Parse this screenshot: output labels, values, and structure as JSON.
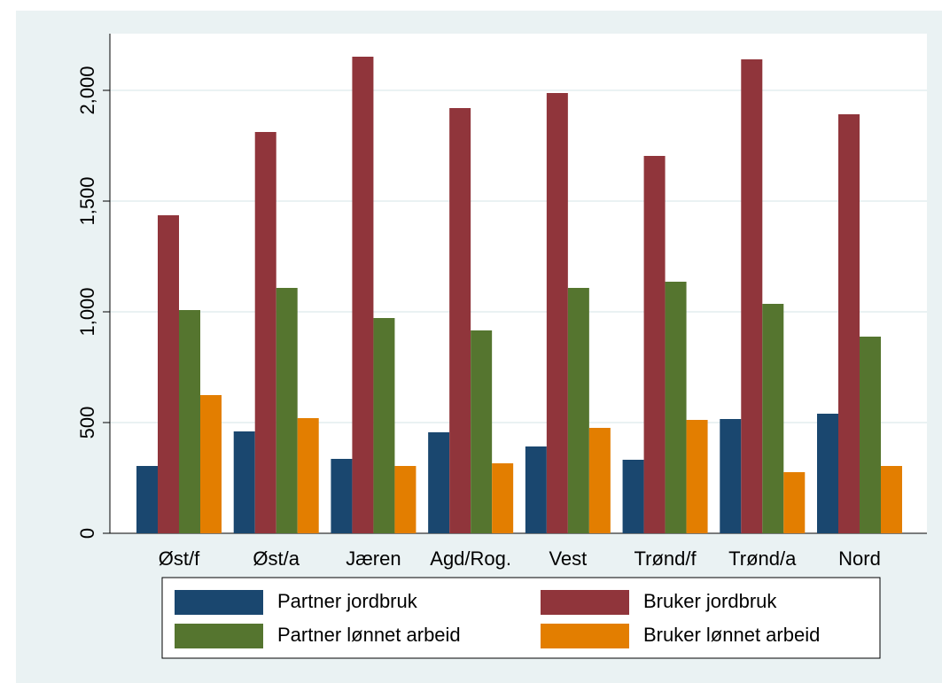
{
  "chart_data": {
    "type": "bar",
    "categories": [
      "Øst/f",
      "Øst/a",
      "Jæren",
      "Agd/Rog.",
      "Vest",
      "Trønd/f",
      "Trønd/a",
      "Nord"
    ],
    "series": [
      {
        "name": "Partner jordbruk",
        "color": "#1a476f",
        "values": [
          304,
          460,
          336,
          456,
          392,
          332,
          516,
          540
        ]
      },
      {
        "name": "Bruker jordbruk",
        "color": "#90353b",
        "values": [
          1436,
          1812,
          2152,
          1920,
          1988,
          1704,
          2140,
          1892
        ]
      },
      {
        "name": "Partner lønnet arbeid",
        "color": "#55752f",
        "values": [
          1008,
          1108,
          972,
          916,
          1108,
          1136,
          1036,
          888
        ]
      },
      {
        "name": "Bruker lønnet arbeid",
        "color": "#e37e00",
        "values": [
          624,
          520,
          304,
          316,
          476,
          512,
          276,
          304
        ]
      }
    ],
    "ylim": [
      0,
      2256
    ],
    "yticks": [
      0,
      500,
      {
        "value": 1000,
        "label": "1,000"
      },
      {
        "value": 1500,
        "label": "1,500"
      },
      {
        "value": 2000,
        "label": "2,000"
      }
    ],
    "grid": true
  }
}
